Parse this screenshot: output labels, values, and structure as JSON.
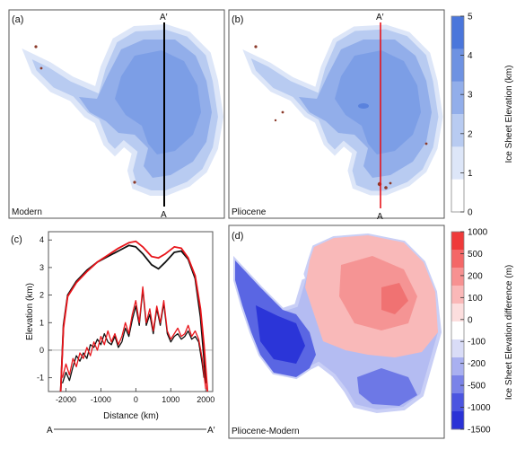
{
  "panels": {
    "a": {
      "letter": "(a)",
      "top_label": "A′",
      "bottom_label": "A",
      "caption": "Modern"
    },
    "b": {
      "letter": "(b)",
      "top_label": "A′",
      "bottom_label": "A",
      "caption": "Pliocene"
    },
    "c": {
      "letter": "(c)",
      "start_label": "A",
      "end_label": "A′"
    },
    "d": {
      "letter": "(d)",
      "caption": "Pliocene-Modern"
    }
  },
  "colorbar_elevation": {
    "label": "Ice Sheet Elevation (km)",
    "ticks": [
      "0",
      "1",
      "2",
      "3",
      "4",
      "5"
    ],
    "colors": [
      "#ffffff",
      "#dde6f8",
      "#b8cbf1",
      "#92aeea",
      "#6e92e2",
      "#4a76db"
    ]
  },
  "colorbar_difference": {
    "label": "Ice Sheet Elevation difference (m)",
    "ticks": [
      "1000",
      "500",
      "200",
      "100",
      "0",
      "-100",
      "-200",
      "-500",
      "-1000",
      "-1500"
    ],
    "colors": [
      "#ef3a3a",
      "#f46767",
      "#f79191",
      "#fab8b8",
      "#fcdede",
      "#ffffff",
      "#d9dcf7",
      "#a9b0f0",
      "#7a83e8",
      "#4b55e0",
      "#2a32d6"
    ]
  },
  "chart_data": [
    {
      "type": "line",
      "panel": "(c)",
      "xlabel": "Distance (km)",
      "ylabel": "Elevation (km)",
      "xlim": [
        -2500,
        2200
      ],
      "ylim": [
        -1.5,
        4.3
      ],
      "xticks": [
        -2000,
        -1000,
        0,
        1000,
        2000
      ],
      "yticks": [
        -1,
        0,
        1,
        2,
        3,
        4
      ],
      "zero_line": true,
      "series": [
        {
          "color": "#111111",
          "role": "surface",
          "x": [
            -2150,
            -2070,
            -1950,
            -1700,
            -1400,
            -1100,
            -800,
            -500,
            -200,
            0,
            200,
            450,
            650,
            850,
            1100,
            1300,
            1500,
            1700,
            1850,
            1950,
            2000
          ],
          "y": [
            -1.5,
            0.9,
            2.0,
            2.5,
            2.9,
            3.2,
            3.4,
            3.6,
            3.8,
            3.75,
            3.5,
            3.1,
            2.95,
            3.2,
            3.55,
            3.6,
            3.3,
            2.6,
            1.2,
            -0.3,
            -1.2
          ]
        },
        {
          "color": "#e8141a",
          "role": "surface",
          "x": [
            -2150,
            -2070,
            -1950,
            -1700,
            -1400,
            -1100,
            -800,
            -500,
            -200,
            0,
            200,
            450,
            650,
            850,
            1100,
            1300,
            1500,
            1700,
            1850,
            1950,
            2050
          ],
          "y": [
            -1.5,
            0.8,
            1.95,
            2.45,
            2.85,
            3.2,
            3.45,
            3.7,
            3.9,
            3.95,
            3.75,
            3.4,
            3.35,
            3.5,
            3.75,
            3.7,
            3.35,
            2.7,
            1.5,
            0.2,
            -1.5
          ]
        },
        {
          "color": "#111111",
          "role": "bed",
          "x": [
            -2100,
            -2000,
            -1900,
            -1800,
            -1700,
            -1600,
            -1500,
            -1400,
            -1300,
            -1200,
            -1100,
            -1000,
            -900,
            -800,
            -700,
            -600,
            -500,
            -400,
            -300,
            -200,
            -100,
            0,
            100,
            200,
            300,
            400,
            500,
            600,
            700,
            800,
            900,
            1000,
            1100,
            1200,
            1300,
            1400,
            1500,
            1600,
            1700,
            1800,
            1900,
            1950
          ],
          "y": [
            -1.2,
            -0.8,
            -1.1,
            -0.6,
            -0.2,
            -0.4,
            -0.1,
            -0.3,
            0.2,
            0.1,
            0.4,
            0.2,
            0.6,
            0.3,
            0.2,
            0.5,
            0.1,
            0.3,
            0.8,
            0.5,
            1.1,
            1.6,
            0.9,
            2.2,
            0.9,
            1.3,
            0.6,
            1.5,
            0.9,
            1.7,
            0.6,
            0.3,
            0.5,
            0.6,
            0.4,
            0.5,
            0.7,
            0.4,
            0.5,
            0.3,
            -0.5,
            -1.0
          ]
        },
        {
          "color": "#e8141a",
          "role": "bed",
          "x": [
            -2100,
            -2000,
            -1900,
            -1800,
            -1700,
            -1600,
            -1500,
            -1400,
            -1300,
            -1200,
            -1100,
            -1000,
            -900,
            -800,
            -700,
            -600,
            -500,
            -400,
            -300,
            -200,
            -100,
            0,
            100,
            200,
            300,
            400,
            500,
            600,
            700,
            800,
            900,
            1000,
            1100,
            1200,
            1300,
            1400,
            1500,
            1600,
            1700,
            1800,
            1900,
            2000
          ],
          "y": [
            -1.0,
            -0.5,
            -0.9,
            -0.3,
            -0.6,
            -0.1,
            -0.3,
            0.1,
            -0.2,
            0.3,
            0.0,
            0.5,
            0.2,
            0.7,
            0.3,
            0.6,
            0.2,
            0.5,
            1.0,
            0.6,
            1.3,
            1.8,
            1.0,
            2.3,
            1.0,
            1.5,
            0.7,
            1.6,
            1.0,
            1.8,
            0.7,
            0.4,
            0.6,
            0.8,
            0.5,
            0.6,
            0.9,
            0.5,
            0.7,
            0.4,
            -0.3,
            -1.4
          ]
        }
      ]
    }
  ]
}
